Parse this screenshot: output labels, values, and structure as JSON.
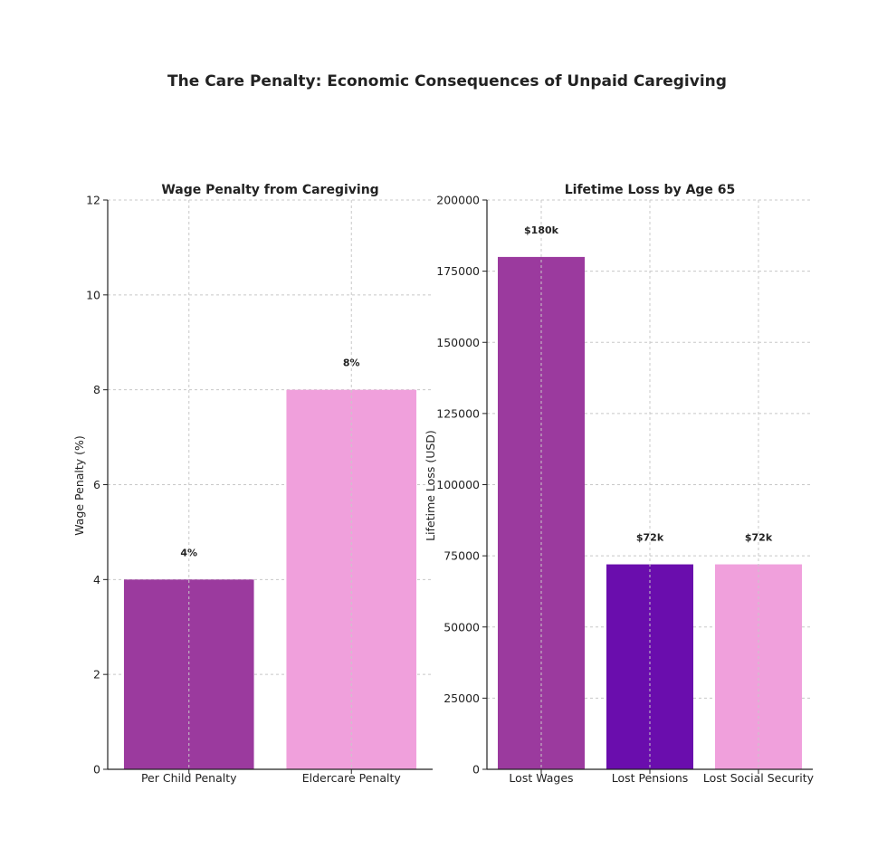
{
  "title": "The Care Penalty: Economic Consequences of Unpaid Caregiving",
  "chart_data": [
    {
      "type": "bar",
      "title": "Wage Penalty from Caregiving",
      "xlabel": "",
      "ylabel": "Wage Penalty (%)",
      "categories": [
        "Per Child Penalty",
        "Eldercare Penalty"
      ],
      "values": [
        4,
        8
      ],
      "data_labels": [
        "4%",
        "8%"
      ],
      "colors": [
        "#9b3a9e",
        "#f0a0dc"
      ],
      "ylim": [
        0,
        12
      ],
      "yticks": [
        0,
        2,
        4,
        6,
        8,
        10,
        12
      ],
      "ytick_labels": [
        "0",
        "2",
        "4",
        "6",
        "8",
        "10",
        "12"
      ],
      "grid": true
    },
    {
      "type": "bar",
      "title": "Lifetime Loss by Age 65",
      "xlabel": "",
      "ylabel": "Lifetime Loss (USD)",
      "categories": [
        "Lost Wages",
        "Lost Pensions",
        "Lost Social Security"
      ],
      "values": [
        180000,
        72000,
        72000
      ],
      "data_labels": [
        "$180k",
        "$72k",
        "$72k"
      ],
      "colors": [
        "#9b3a9e",
        "#6a0dad",
        "#f0a0dc"
      ],
      "ylim": [
        0,
        200000
      ],
      "yticks": [
        0,
        25000,
        50000,
        75000,
        100000,
        125000,
        150000,
        175000,
        200000
      ],
      "ytick_labels": [
        "0",
        "25000",
        "50000",
        "75000",
        "100000",
        "125000",
        "150000",
        "175000",
        "200000"
      ],
      "grid": true
    }
  ]
}
